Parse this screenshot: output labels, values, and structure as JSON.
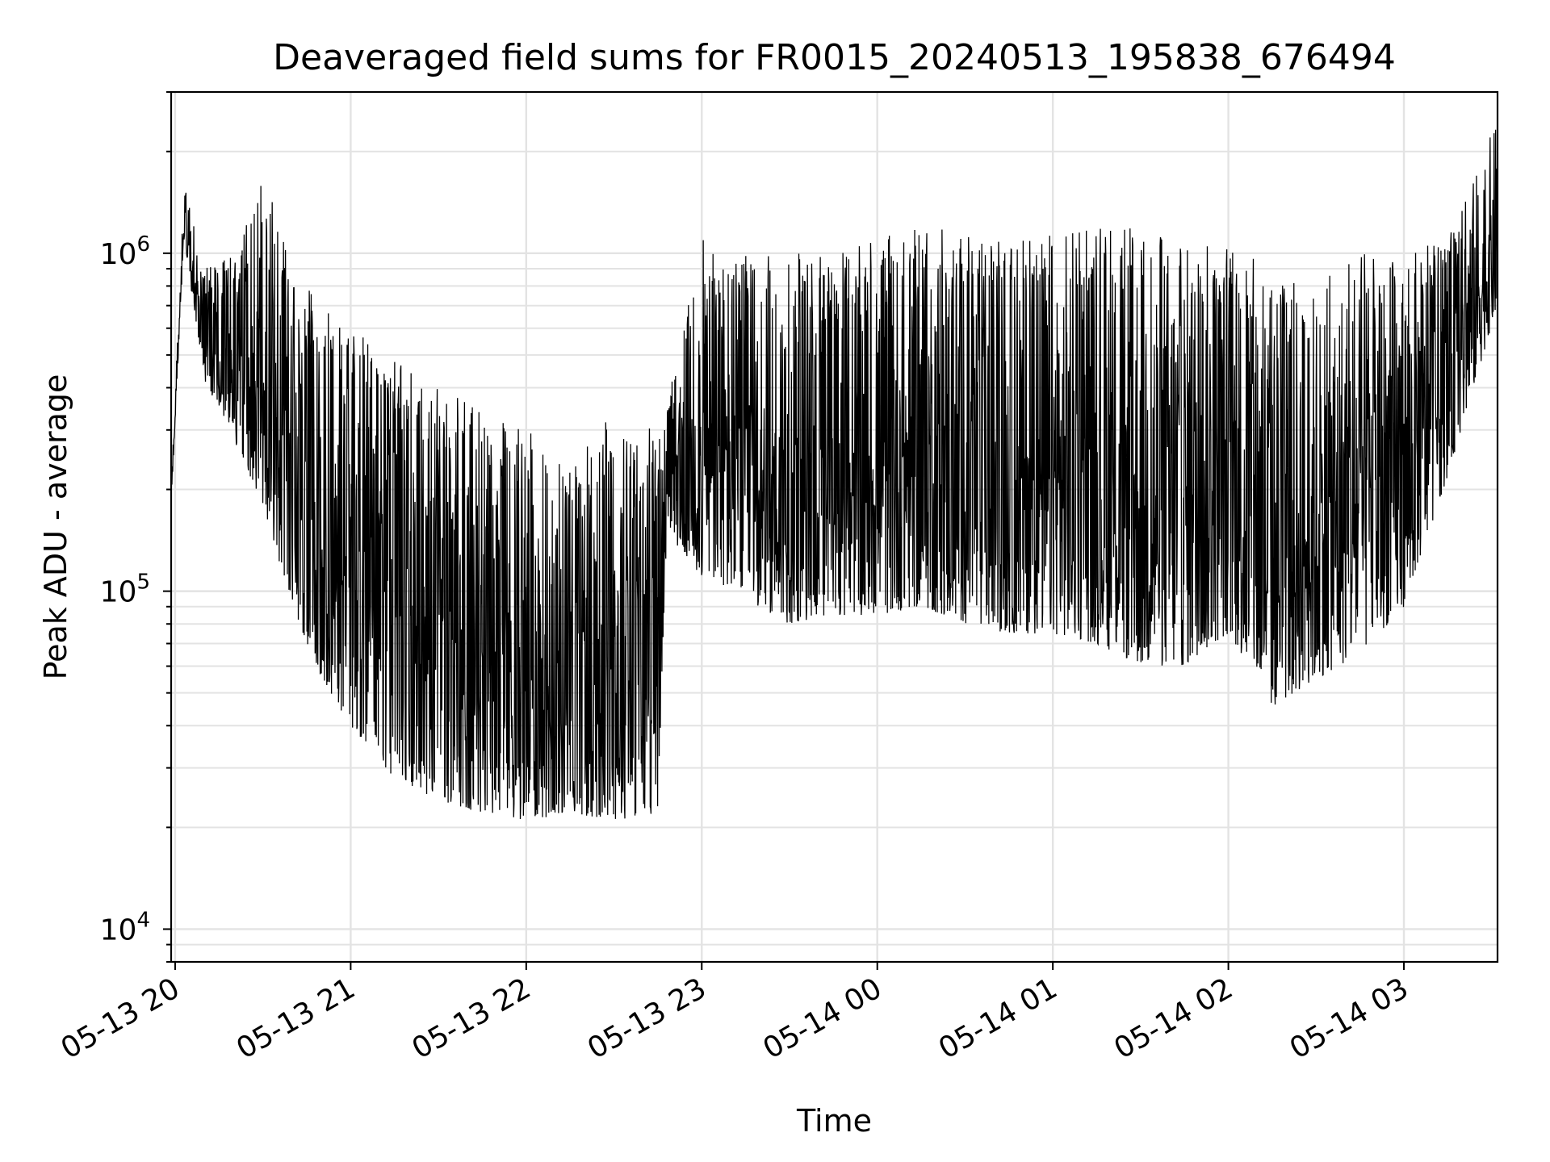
{
  "chart_data": {
    "type": "line",
    "title": "Deaveraged field sums for FR0015_20240513_195838_676494",
    "xlabel": "Time",
    "ylabel": "Peak ADU - average",
    "yscale": "log",
    "ylim": [
      8000,
      3000000
    ],
    "xlim": [
      "2024-05-13 19:58:38",
      "2024-05-14 03:32:00"
    ],
    "x_ticks": [
      {
        "value": "2024-05-13 20:00",
        "label": "05-13 20"
      },
      {
        "value": "2024-05-13 21:00",
        "label": "05-13 21"
      },
      {
        "value": "2024-05-13 22:00",
        "label": "05-13 22"
      },
      {
        "value": "2024-05-13 23:00",
        "label": "05-13 23"
      },
      {
        "value": "2024-05-14 00:00",
        "label": "05-14 00"
      },
      {
        "value": "2024-05-14 01:00",
        "label": "05-14 01"
      },
      {
        "value": "2024-05-14 02:00",
        "label": "05-14 02"
      },
      {
        "value": "2024-05-14 03:00",
        "label": "05-14 03"
      }
    ],
    "y_ticks": [
      {
        "value": 10000,
        "base": "10",
        "exp": "4"
      },
      {
        "value": 100000,
        "base": "10",
        "exp": "5"
      },
      {
        "value": 1000000,
        "base": "10",
        "exp": "6"
      }
    ],
    "grid": true,
    "line_color": "#000000",
    "envelope": {
      "description_x_units": "time",
      "x": [
        "2024-05-13 19:58:38",
        "2024-05-13 20:03:00",
        "2024-05-13 20:10:00",
        "2024-05-13 20:20:00",
        "2024-05-13 20:30:00",
        "2024-05-13 20:40:00",
        "2024-05-13 20:50:00",
        "2024-05-13 21:00:00",
        "2024-05-13 21:15:00",
        "2024-05-13 21:30:00",
        "2024-05-13 21:45:00",
        "2024-05-13 22:00:00",
        "2024-05-13 22:15:00",
        "2024-05-13 22:30:00",
        "2024-05-13 22:45:00",
        "2024-05-13 22:48:00",
        "2024-05-13 23:00:00",
        "2024-05-13 23:15:00",
        "2024-05-13 23:30:00",
        "2024-05-13 23:45:00",
        "2024-05-14 00:00:00",
        "2024-05-14 00:15:00",
        "2024-05-14 00:30:00",
        "2024-05-14 00:45:00",
        "2024-05-14 01:00:00",
        "2024-05-14 01:15:00",
        "2024-05-14 01:30:00",
        "2024-05-14 01:45:00",
        "2024-05-14 02:00:00",
        "2024-05-14 02:15:00",
        "2024-05-14 02:30:00",
        "2024-05-14 02:45:00",
        "2024-05-14 03:00:00",
        "2024-05-14 03:15:00",
        "2024-05-14 03:32:00"
      ],
      "low": [
        180000,
        1100000,
        420000,
        280000,
        180000,
        90000,
        55000,
        40000,
        28000,
        24000,
        22000,
        21000,
        22000,
        21000,
        22000,
        150000,
        110000,
        95000,
        80000,
        85000,
        85000,
        90000,
        80000,
        75000,
        75000,
        70000,
        60000,
        60000,
        75000,
        45000,
        55000,
        65000,
        90000,
        220000,
        700000
      ],
      "high": [
        200000,
        1600000,
        900000,
        1000000,
        1800000,
        900000,
        700000,
        600000,
        500000,
        400000,
        350000,
        300000,
        250000,
        350000,
        300000,
        350000,
        1100000,
        1000000,
        1000000,
        1000000,
        1100000,
        1200000,
        1200000,
        1100000,
        1200000,
        1200000,
        1200000,
        1100000,
        1100000,
        900000,
        800000,
        1000000,
        1000000,
        1100000,
        2500000
      ]
    }
  }
}
